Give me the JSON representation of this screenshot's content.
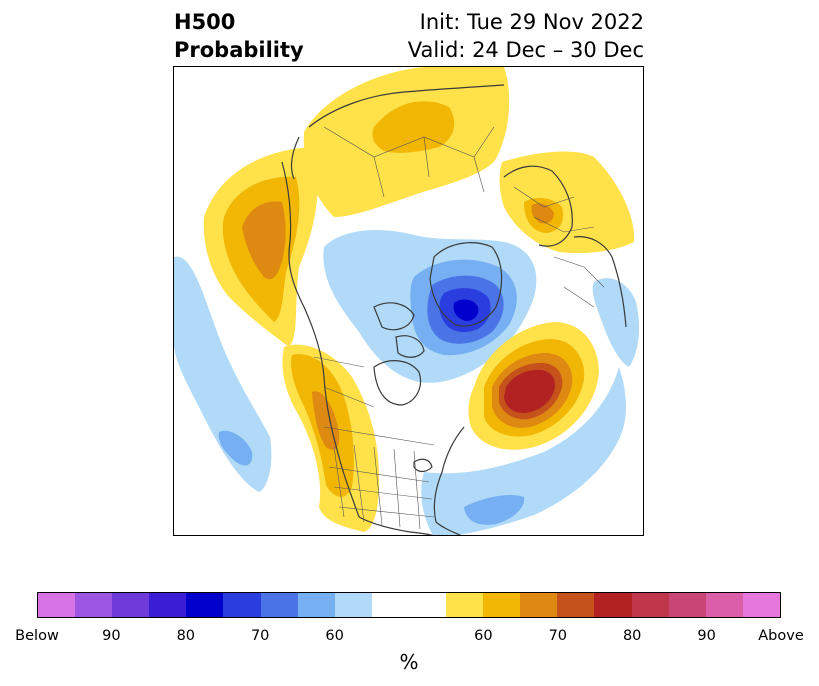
{
  "title": {
    "left_line1": "H500",
    "left_line2": "Probability",
    "right_line1": "Init: Tue 29 Nov 2022",
    "right_line2": "Valid: 24 Dec – 30 Dec"
  },
  "colorbar": {
    "unit": "%",
    "colors": [
      "#d873e6",
      "#9b55e0",
      "#6e3bd9",
      "#3c1dd6",
      "#0000cc",
      "#2a3ee0",
      "#4a73e6",
      "#76b0f2",
      "#b0daf7",
      "#ffffff",
      "#ffffff",
      "#ffe14a",
      "#f2b705",
      "#de8a12",
      "#c4521a",
      "#b22222",
      "#c0364a",
      "#c94575",
      "#da5ea8",
      "#e677dd"
    ],
    "ticks": [
      "Below",
      "90",
      "80",
      "70",
      "60",
      "60",
      "70",
      "80",
      "90",
      "Above"
    ]
  },
  "map": {
    "projection": "north-polar-stereographic",
    "field": "500 hPa height anomaly probability",
    "colors": {
      "below_60": "#b0daf7",
      "below_70": "#76b0f2",
      "below_80": "#4a73e6",
      "below_85": "#2a3ee0",
      "below_90": "#0000cc",
      "above_60": "#ffe14a",
      "above_65": "#f2b705",
      "above_70": "#de8a12",
      "above_75": "#c4521a",
      "above_80": "#b22222",
      "coast": "#3a3a3a"
    }
  }
}
